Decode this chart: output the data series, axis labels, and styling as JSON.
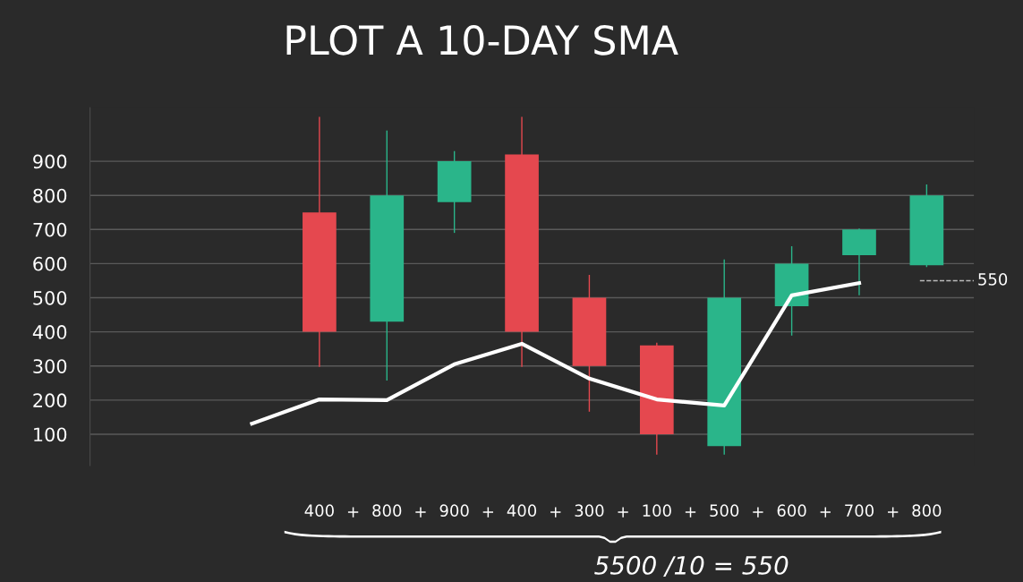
{
  "chart_data": {
    "type": "candlestick",
    "title": "PLOT A 10-DAY SMA",
    "categories": [
      null,
      "400",
      "800",
      "900",
      "400",
      "300",
      "100",
      "500",
      "600",
      "700",
      "800"
    ],
    "ohlc": [
      null,
      [
        750,
        1030,
        297,
        400
      ],
      [
        430,
        990,
        257,
        800
      ],
      [
        780,
        930,
        690,
        900
      ],
      [
        920,
        1030,
        297,
        400
      ],
      [
        500,
        567,
        166,
        300
      ],
      [
        360,
        368,
        40,
        100
      ],
      [
        65,
        612,
        40,
        500
      ],
      [
        475,
        651,
        389,
        600
      ],
      [
        625,
        703,
        507,
        700
      ],
      [
        595,
        832,
        590,
        800
      ]
    ],
    "colors": [
      null,
      "#e5484f",
      "#2ab58a",
      "#2ab58a",
      "#e5484f",
      "#e5484f",
      "#e5484f",
      "#2ab58a",
      "#2ab58a",
      "#2ab58a",
      "#2ab58a"
    ],
    "series": [
      {
        "type": "line",
        "color": "#ffffff",
        "values": [
          131,
          202,
          200,
          305,
          365,
          263,
          202,
          184,
          507,
          543,
          null
        ]
      }
    ],
    "ylim": [
      8,
      1057
    ],
    "yticks": [
      100,
      200,
      300,
      400,
      500,
      600,
      700,
      800,
      900
    ],
    "grid": "y",
    "ref_lines": [
      {
        "axis": "y",
        "value": 550,
        "label": "550",
        "color": "#bbbbbb",
        "line_style": "dashed"
      }
    ],
    "annotations": [
      "+",
      "+",
      "+",
      "+",
      "+",
      "+",
      "+",
      "+",
      "+",
      "5500 /10 = 550"
    ]
  }
}
